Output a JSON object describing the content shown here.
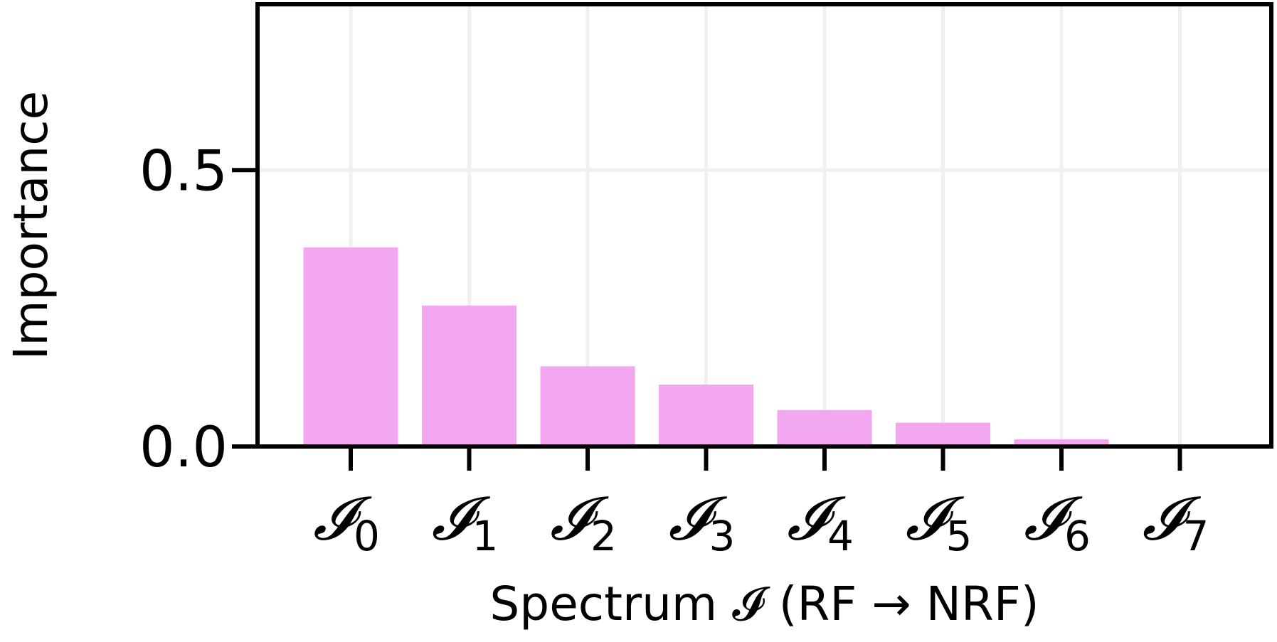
{
  "chart_data": {
    "type": "bar",
    "categories": [
      {
        "symbol": "𝓘",
        "sub": "0"
      },
      {
        "symbol": "𝓘",
        "sub": "1"
      },
      {
        "symbol": "𝓘",
        "sub": "2"
      },
      {
        "symbol": "𝓘",
        "sub": "3"
      },
      {
        "symbol": "𝓘",
        "sub": "4"
      },
      {
        "symbol": "𝓘",
        "sub": "5"
      },
      {
        "symbol": "𝓘",
        "sub": "6"
      },
      {
        "symbol": "𝓘",
        "sub": "7"
      }
    ],
    "values": [
      0.36,
      0.255,
      0.145,
      0.112,
      0.066,
      0.043,
      0.013,
      0.0
    ],
    "xlabel": "Spectrum 𝓘 (RF → NRF)",
    "ylabel": "Importance",
    "ylim": [
      0,
      0.8
    ],
    "yticks": [
      0.0,
      0.5
    ],
    "ytick_labels": [
      "0.0",
      "0.5"
    ],
    "grid": true,
    "bar_color": "#f2a7f0",
    "axis_color": "#000000",
    "grid_color": "#f0f0f0"
  }
}
